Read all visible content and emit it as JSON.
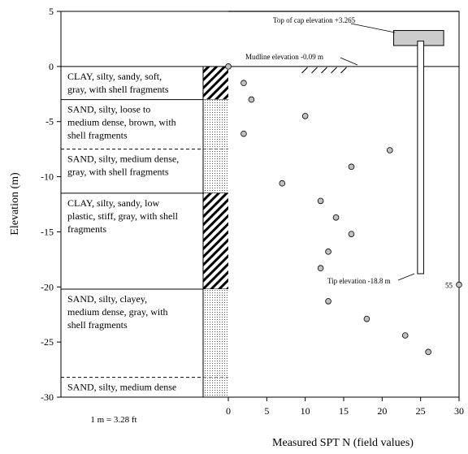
{
  "chart_data": {
    "type": "scatter",
    "xlabel": "Measured SPT N (field values)",
    "ylabel": "Elevation (m)",
    "xlim": [
      0,
      30
    ],
    "ylim": [
      -30,
      5
    ],
    "x_ticks": [
      "0",
      "5",
      "10",
      "15",
      "20",
      "25",
      "30"
    ],
    "y_ticks": [
      "5",
      "0",
      "-5",
      "-10",
      "-15",
      "-20",
      "-25",
      "-30"
    ],
    "grid": false,
    "points": [
      {
        "x": 0,
        "y": 0
      },
      {
        "x": 2,
        "y": -1.5
      },
      {
        "x": 3,
        "y": -3
      },
      {
        "x": 10,
        "y": -4.5
      },
      {
        "x": 2,
        "y": -6.1
      },
      {
        "x": 21,
        "y": -7.6
      },
      {
        "x": 16,
        "y": -9.1
      },
      {
        "x": 7,
        "y": -10.6
      },
      {
        "x": 12,
        "y": -12.2
      },
      {
        "x": 14,
        "y": -13.7
      },
      {
        "x": 16,
        "y": -15.2
      },
      {
        "x": 13,
        "y": -16.8
      },
      {
        "x": 12,
        "y": -18.3
      },
      {
        "x": 30,
        "y": -19.8
      },
      {
        "x": 13,
        "y": -21.3
      },
      {
        "x": 18,
        "y": -22.9
      },
      {
        "x": 23,
        "y": -24.4
      },
      {
        "x": 26,
        "y": -25.9
      }
    ],
    "point_labels": [
      {
        "text": "55",
        "x": 30,
        "y": -19.8
      }
    ],
    "soil_layers": [
      {
        "top": 0,
        "bottom": -3,
        "pattern": "diagonal-hatch",
        "line_below": "solid",
        "lines": [
          "CLAY, silty, sandy, soft,",
          "gray, with shell fragments"
        ]
      },
      {
        "top": -3,
        "bottom": -7.5,
        "pattern": "dotted",
        "line_below": "dashed",
        "lines": [
          "SAND, silty, loose to",
          "medium dense, brown, with",
          "shell fragments"
        ]
      },
      {
        "top": -7.5,
        "bottom": -11.5,
        "pattern": "dotted",
        "line_below": "solid",
        "lines": [
          "SAND, silty, medium dense,",
          "gray, with shell fragments"
        ]
      },
      {
        "top": -11.5,
        "bottom": -20.2,
        "pattern": "diagonal-hatch",
        "line_below": "solid",
        "lines": [
          "CLAY, silty, sandy, low",
          "plastic, stiff, gray, with shell",
          "fragments"
        ]
      },
      {
        "top": -20.2,
        "bottom": -28.2,
        "pattern": "dotted",
        "line_below": "dashed",
        "lines": [
          "SAND, silty, clayey,",
          "medium dense, gray, with",
          "shell fragments"
        ]
      },
      {
        "top": -28.2,
        "bottom": -30,
        "pattern": "dotted",
        "line_below": "none",
        "lines": [
          "SAND, silty, medium dense"
        ]
      }
    ],
    "annotations": {
      "top_of_cap": "Top of cap elevation +3.265",
      "top_of_cap_value": 3.265,
      "mudline": "Mudline elevation -0.09 m",
      "mudline_value": -0.09,
      "tip": "Tip elevation -18.8 m",
      "tip_value": -18.8
    },
    "pile": {
      "cap_x": [
        21.5,
        28
      ],
      "cap_top": 3.265,
      "cap_bottom": 1.9,
      "shaft_x": [
        24.6,
        25.4
      ]
    },
    "conversion_note": "1 m = 3.28 ft"
  }
}
